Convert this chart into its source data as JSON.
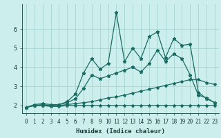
{
  "xlabel": "Humidex (Indice chaleur)",
  "bg_color": "#cceeed",
  "grid_color": "#aad8d4",
  "line_color": "#1a6b62",
  "xlim": [
    -0.5,
    23.5
  ],
  "ylim": [
    1.6,
    7.3
  ],
  "xticks": [
    0,
    1,
    2,
    3,
    4,
    5,
    6,
    7,
    8,
    9,
    10,
    11,
    12,
    13,
    14,
    15,
    16,
    17,
    18,
    19,
    20,
    21,
    22,
    23
  ],
  "yticks": [
    2,
    3,
    4,
    5,
    6
  ],
  "line1_x": [
    0,
    1,
    2,
    3,
    4,
    5,
    6,
    7,
    8,
    9,
    10,
    11,
    12,
    13,
    14,
    15,
    16,
    17,
    18,
    19,
    20,
    21,
    22,
    23
  ],
  "line1_y": [
    1.9,
    2.0,
    2.0,
    1.95,
    1.95,
    2.0,
    2.0,
    2.0,
    2.0,
    2.0,
    2.0,
    2.0,
    2.0,
    2.0,
    2.0,
    2.0,
    2.0,
    2.0,
    2.0,
    2.0,
    2.0,
    2.0,
    2.0,
    2.0
  ],
  "line2_x": [
    0,
    1,
    2,
    3,
    4,
    5,
    6,
    7,
    8,
    9,
    10,
    11,
    12,
    13,
    14,
    15,
    16,
    17,
    18,
    19,
    20,
    21,
    22,
    23
  ],
  "line2_y": [
    1.9,
    2.0,
    2.0,
    2.0,
    2.0,
    2.05,
    2.1,
    2.15,
    2.2,
    2.3,
    2.4,
    2.45,
    2.55,
    2.65,
    2.75,
    2.85,
    2.95,
    3.05,
    3.15,
    3.25,
    3.35,
    3.35,
    3.2,
    3.1
  ],
  "line3_x": [
    0,
    1,
    2,
    3,
    4,
    5,
    6,
    7,
    8,
    9,
    10,
    11,
    12,
    13,
    14,
    15,
    16,
    17,
    18,
    19,
    20,
    21,
    22,
    23
  ],
  "line3_y": [
    1.9,
    2.0,
    2.05,
    2.0,
    2.05,
    2.15,
    2.35,
    2.9,
    3.6,
    3.4,
    3.55,
    3.7,
    3.85,
    4.0,
    3.75,
    4.2,
    4.9,
    4.3,
    4.7,
    4.45,
    3.6,
    2.55,
    2.4,
    2.15
  ],
  "line4_x": [
    0,
    1,
    2,
    3,
    4,
    5,
    6,
    7,
    8,
    9,
    10,
    11,
    12,
    13,
    14,
    15,
    16,
    17,
    18,
    19,
    20,
    21,
    22,
    23
  ],
  "line4_y": [
    1.9,
    2.05,
    2.1,
    2.05,
    2.05,
    2.2,
    2.6,
    3.7,
    4.45,
    3.9,
    4.2,
    6.85,
    4.3,
    5.0,
    4.45,
    5.6,
    5.85,
    4.5,
    5.5,
    5.15,
    5.2,
    2.7,
    2.35,
    2.15
  ],
  "marker": "*",
  "markersize": 3.5,
  "linewidth": 0.9,
  "tick_fontsize": 5.5,
  "xlabel_fontsize": 6.5
}
